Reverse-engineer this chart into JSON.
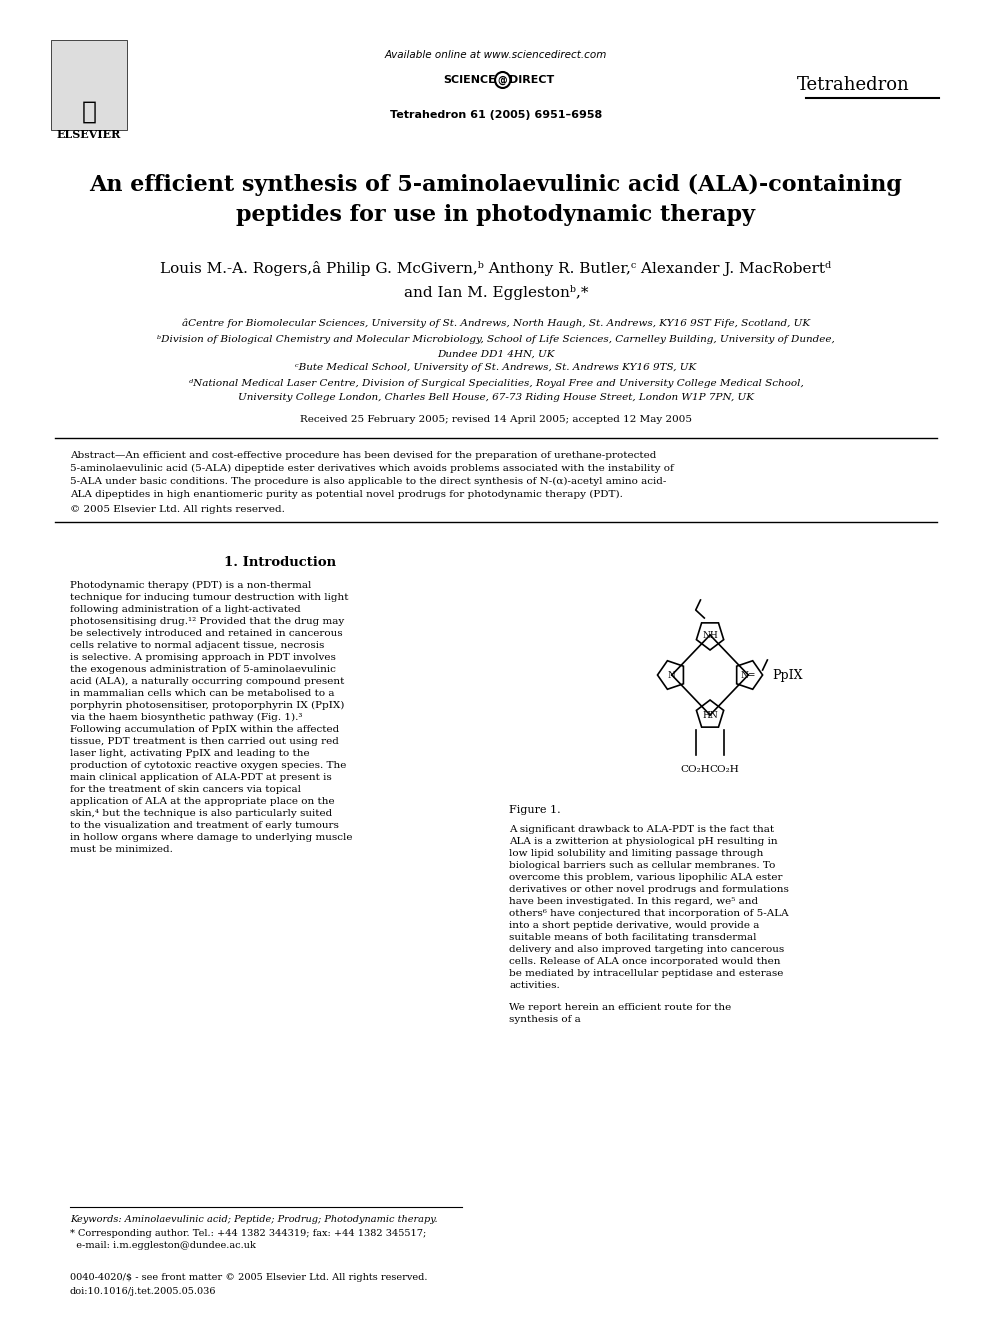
{
  "title_line1": "An efficient synthesis of 5-aminolaevulinic acid (ALA)-containing",
  "title_line2": "peptides for use in photodynamic therapy",
  "authors_line1": "Louis M.-A. Rogers,â Philip G. McGivern,ᵇ Anthony R. Butler,ᶜ Alexander J. MacRobertᵈ",
  "authors_line2": "and Ian M. Egglestonᵇ,*",
  "affil_a": "âCentre for Biomolecular Sciences, University of St. Andrews, North Haugh, St. Andrews, KY16 9ST Fife, Scotland, UK",
  "affil_b": "ᵇDivision of Biological Chemistry and Molecular Microbiology, School of Life Sciences, Carnelley Building, University of Dundee,",
  "affil_b2": "Dundee DD1 4HN, UK",
  "affil_c": "ᶜBute Medical School, University of St. Andrews, St. Andrews KY16 9TS, UK",
  "affil_d": "ᵈNational Medical Laser Centre, Division of Surgical Specialities, Royal Free and University College Medical School,",
  "affil_d2": "University College London, Charles Bell House, 67-73 Riding House Street, London W1P 7PN, UK",
  "received": "Received 25 February 2005; revised 14 April 2005; accepted 12 May 2005",
  "abstract_title": "Abstract",
  "abstract_text": "—An efficient and cost-effective procedure has been devised for the preparation of urethane-protected 5-aminolaevulinic acid (5-ALA) dipeptide ester derivatives which avoids problems associated with the instability of 5-ALA under basic conditions. The procedure is also applicable to the direct synthesis of N-(α)-acetyl amino acid-ALA dipeptides in high enantiomeric purity as potential novel prodrugs for photodynamic therapy (PDT).",
  "copyright": "© 2005 Elsevier Ltd. All rights reserved.",
  "journal_header": "Available online at www.sciencedirect.com",
  "journal_name": "Tetrahedron",
  "journal_citation": "Tetrahedron 61 (2005) 6951–6958",
  "elsevier": "ELSEVIER",
  "section1_title": "1. Introduction",
  "intro_text": "Photodynamic therapy (PDT) is a non-thermal technique for inducing tumour destruction with light following administration of a light-activated photosensitising drug.¹² Provided that the drug may be selectively introduced and retained in cancerous cells relative to normal adjacent tissue, necrosis is selective. A promising approach in PDT involves the exogenous administration of 5-aminolaevulinic acid (ALA), a naturally occurring compound present in mammalian cells which can be metabolised to a porphyrin photosensitiser, protoporphyrin IX (PpIX) via the haem biosynthetic pathway (Fig. 1).³ Following accumulation of PpIX within the affected tissue, PDT treatment is then carried out using red laser light, activating PpIX and leading to the production of cytotoxic reactive oxygen species. The main clinical application of ALA-PDT at present is for the treatment of skin cancers via topical application of ALA at the appropriate place on the skin,⁴ but the technique is also particularly suited to the visualization and treatment of early tumours in hollow organs where damage to underlying muscle must be minimized.",
  "right_text": "A significant drawback to ALA-PDT is the fact that ALA is a zwitterion at physiological pH resulting in low lipid solubility and limiting passage through biological barriers such as cellular membranes. To overcome this problem, various lipophilic ALA ester derivatives or other novel prodrugs and formulations have been investigated. In this regard, we⁵ and others⁶ have conjectured that incorporation of 5-ALA into a short peptide derivative, would provide a suitable means of both facilitating transdermal delivery and also improved targeting into cancerous cells. Release of ALA once incorporated would then be mediated by intracellular peptidase and esterase activities.",
  "right_text2": "We report herein an efficient route for the synthesis of a",
  "figure_caption": "Figure 1.",
  "ppix_label": "PpIX",
  "co2h_label": "CO₂H",
  "keywords": "Keywords: Aminolaevulinic acid; Peptide; Prodrug; Photodynamic therapy.",
  "corresponding": "* Corresponding author. Tel.: +44 1382 344319; fax: +44 1382 345517; e-mail: i.m.eggleston@dundee.ac.uk",
  "footer1": "0040-4020/$ - see front matter © 2005 Elsevier Ltd. All rights reserved.",
  "footer2": "doi:10.1016/j.tet.2005.05.036",
  "bg_color": "#ffffff",
  "text_color": "#000000",
  "title_fontsize": 16,
  "body_fontsize": 7,
  "header_fontsize": 8
}
